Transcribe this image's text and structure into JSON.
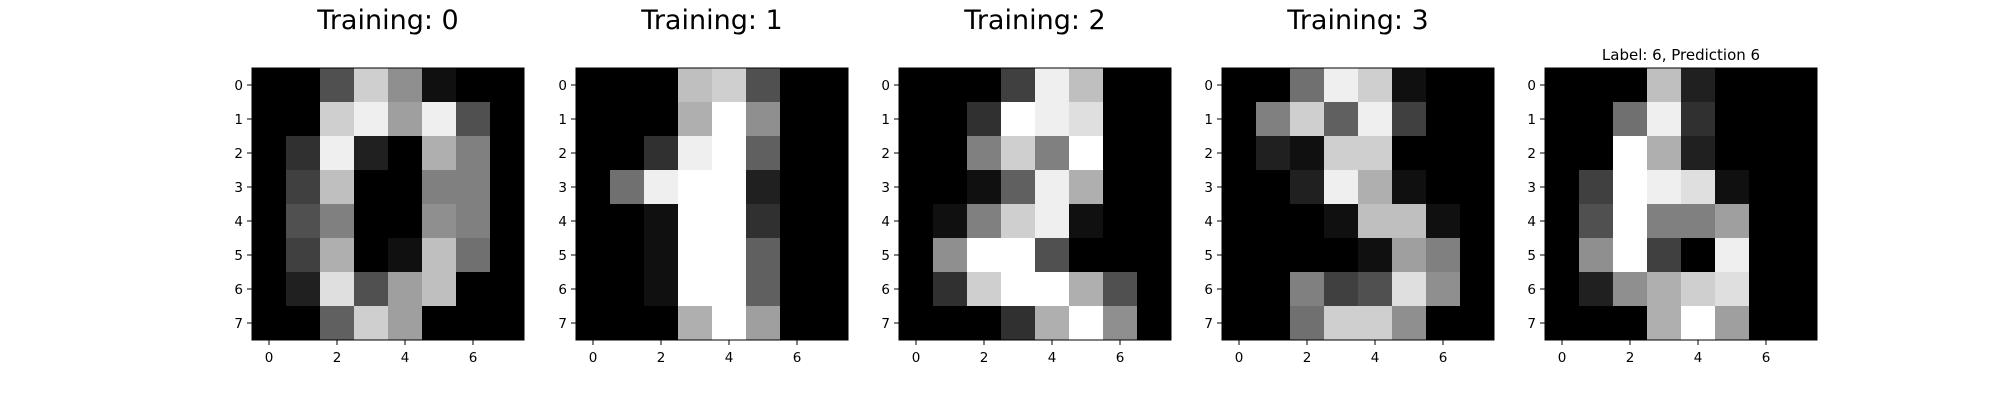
{
  "chart_data": [
    {
      "type": "heatmap",
      "title": "Training: 0",
      "cmap": "gray_r",
      "values": [
        [
          0,
          0,
          5,
          13,
          9,
          1,
          0,
          0
        ],
        [
          0,
          0,
          13,
          15,
          10,
          15,
          5,
          0
        ],
        [
          0,
          3,
          15,
          2,
          0,
          11,
          8,
          0
        ],
        [
          0,
          4,
          12,
          0,
          0,
          8,
          8,
          0
        ],
        [
          0,
          5,
          8,
          0,
          0,
          9,
          8,
          0
        ],
        [
          0,
          4,
          11,
          0,
          1,
          12,
          7,
          0
        ],
        [
          0,
          2,
          14,
          5,
          10,
          12,
          0,
          0
        ],
        [
          0,
          0,
          6,
          13,
          10,
          0,
          0,
          0
        ]
      ],
      "xticks": [
        0,
        2,
        4,
        6
      ],
      "yticks": [
        0,
        1,
        2,
        3,
        4,
        5,
        6,
        7
      ]
    },
    {
      "type": "heatmap",
      "title": "Training: 1",
      "cmap": "gray_r",
      "values": [
        [
          0,
          0,
          0,
          12,
          13,
          5,
          0,
          0
        ],
        [
          0,
          0,
          0,
          11,
          16,
          9,
          0,
          0
        ],
        [
          0,
          0,
          3,
          15,
          16,
          6,
          0,
          0
        ],
        [
          0,
          7,
          15,
          16,
          16,
          2,
          0,
          0
        ],
        [
          0,
          0,
          1,
          16,
          16,
          3,
          0,
          0
        ],
        [
          0,
          0,
          1,
          16,
          16,
          6,
          0,
          0
        ],
        [
          0,
          0,
          1,
          16,
          16,
          6,
          0,
          0
        ],
        [
          0,
          0,
          0,
          11,
          16,
          10,
          0,
          0
        ]
      ],
      "xticks": [
        0,
        2,
        4,
        6
      ],
      "yticks": [
        0,
        1,
        2,
        3,
        4,
        5,
        6,
        7
      ]
    },
    {
      "type": "heatmap",
      "title": "Training: 2",
      "cmap": "gray_r",
      "values": [
        [
          0,
          0,
          0,
          4,
          15,
          12,
          0,
          0
        ],
        [
          0,
          0,
          3,
          16,
          15,
          14,
          0,
          0
        ],
        [
          0,
          0,
          8,
          13,
          8,
          16,
          0,
          0
        ],
        [
          0,
          0,
          1,
          6,
          15,
          11,
          0,
          0
        ],
        [
          0,
          1,
          8,
          13,
          15,
          1,
          0,
          0
        ],
        [
          0,
          9,
          16,
          16,
          5,
          0,
          0,
          0
        ],
        [
          0,
          3,
          13,
          16,
          16,
          11,
          5,
          0
        ],
        [
          0,
          0,
          0,
          3,
          11,
          16,
          9,
          0
        ]
      ],
      "xticks": [
        0,
        2,
        4,
        6
      ],
      "yticks": [
        0,
        1,
        2,
        3,
        4,
        5,
        6,
        7
      ]
    },
    {
      "type": "heatmap",
      "title": "Training: 3",
      "cmap": "gray_r",
      "values": [
        [
          0,
          0,
          7,
          15,
          13,
          1,
          0,
          0
        ],
        [
          0,
          8,
          13,
          6,
          15,
          4,
          0,
          0
        ],
        [
          0,
          2,
          1,
          13,
          13,
          0,
          0,
          0
        ],
        [
          0,
          0,
          2,
          15,
          11,
          1,
          0,
          0
        ],
        [
          0,
          0,
          0,
          1,
          12,
          12,
          1,
          0
        ],
        [
          0,
          0,
          0,
          0,
          1,
          10,
          8,
          0
        ],
        [
          0,
          0,
          8,
          4,
          5,
          14,
          9,
          0
        ],
        [
          0,
          0,
          7,
          13,
          13,
          9,
          0,
          0
        ]
      ],
      "xticks": [
        0,
        2,
        4,
        6
      ],
      "yticks": [
        0,
        1,
        2,
        3,
        4,
        5,
        6,
        7
      ]
    },
    {
      "type": "heatmap",
      "title": "Label: 6, Prediction 6",
      "cmap": "gray_r",
      "values": [
        [
          0,
          0,
          0,
          12,
          2,
          0,
          0,
          0
        ],
        [
          0,
          0,
          7,
          15,
          3,
          0,
          0,
          0
        ],
        [
          0,
          0,
          16,
          11,
          2,
          0,
          0,
          0
        ],
        [
          0,
          4,
          16,
          15,
          14,
          1,
          0,
          0
        ],
        [
          0,
          5,
          16,
          8,
          8,
          10,
          0,
          0
        ],
        [
          0,
          9,
          16,
          4,
          0,
          15,
          0,
          0
        ],
        [
          0,
          2,
          9,
          11,
          13,
          14,
          0,
          0
        ],
        [
          0,
          0,
          0,
          11,
          16,
          10,
          0,
          0
        ]
      ],
      "xticks": [
        0,
        2,
        4,
        6
      ],
      "yticks": [
        0,
        1,
        2,
        3,
        4,
        5,
        6,
        7
      ]
    }
  ]
}
